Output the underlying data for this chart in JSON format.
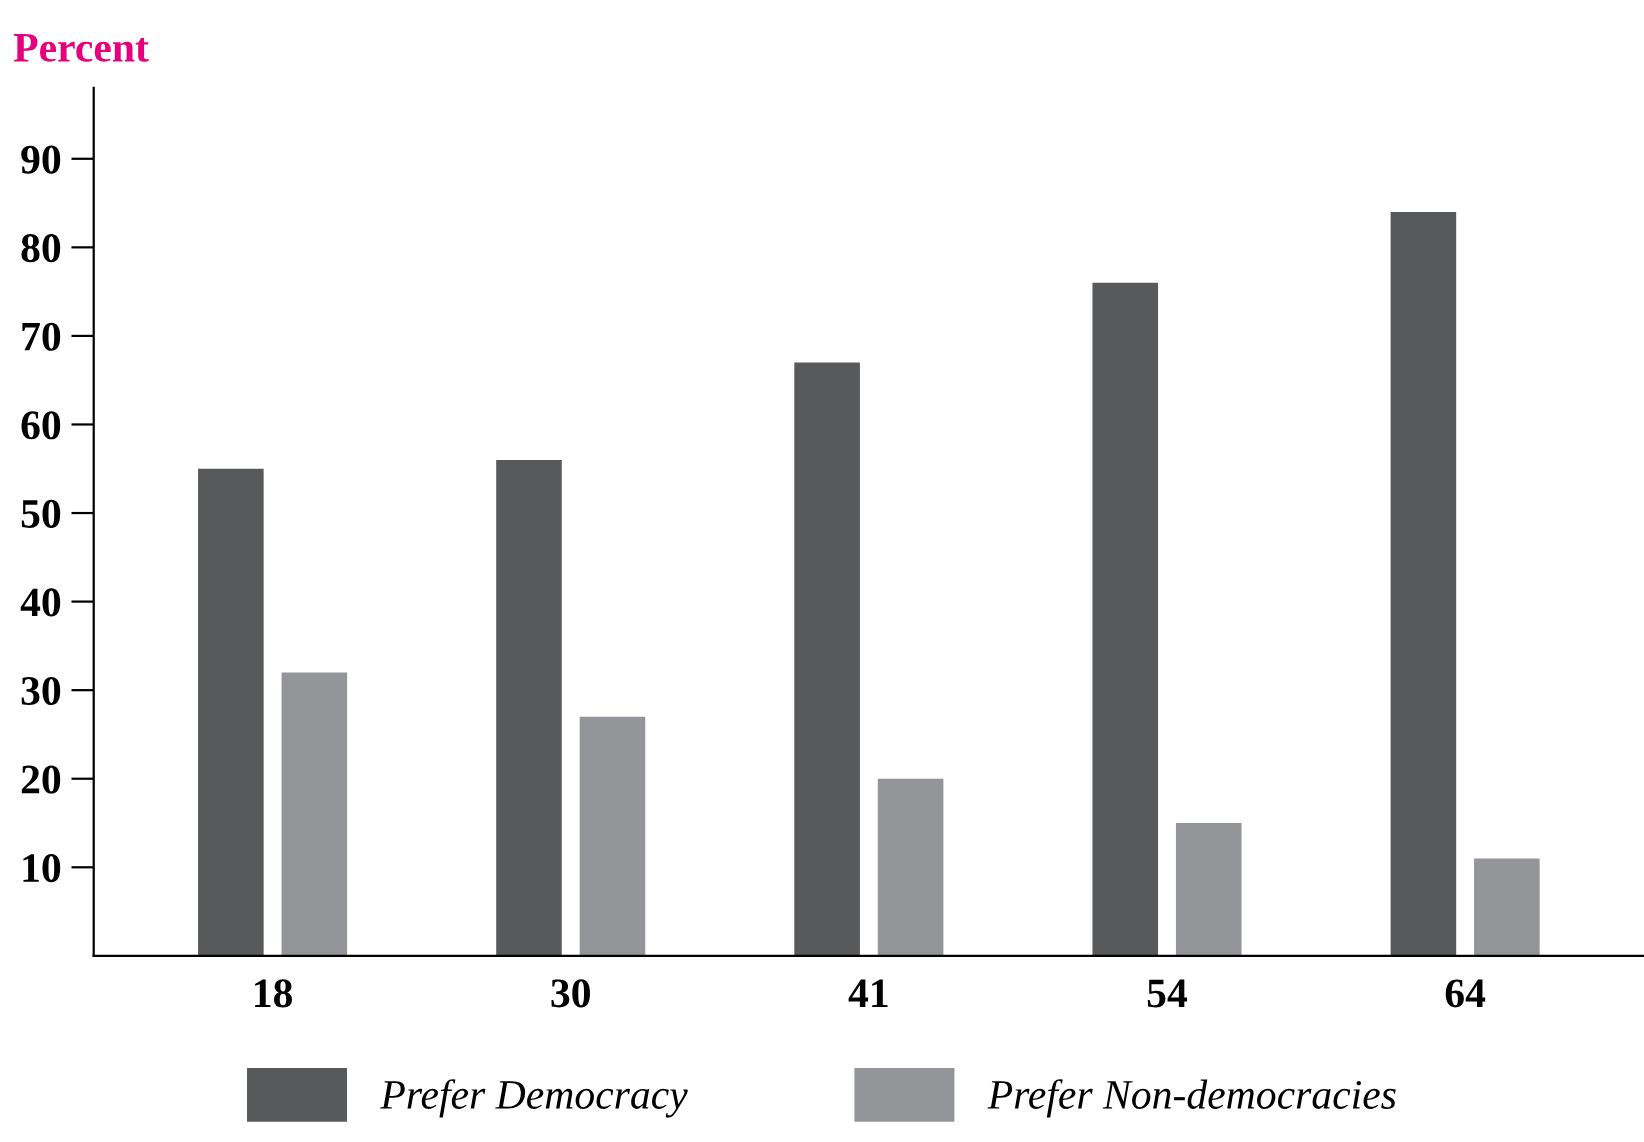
{
  "chart_data": {
    "type": "bar",
    "ylabel": "Percent",
    "categories": [
      "18",
      "30",
      "41",
      "54",
      "64"
    ],
    "series": [
      {
        "name": "Prefer Democracy",
        "color": "#58595b",
        "values": [
          55,
          56,
          67,
          76,
          84
        ]
      },
      {
        "name": "Prefer Non-democracies",
        "color": "#939598",
        "values": [
          32,
          27,
          20,
          15,
          11
        ]
      }
    ],
    "ylim": [
      0,
      98
    ],
    "yticks": [
      10,
      20,
      30,
      40,
      50,
      60,
      70,
      80,
      90
    ],
    "grid": false,
    "legend": "bottom"
  }
}
